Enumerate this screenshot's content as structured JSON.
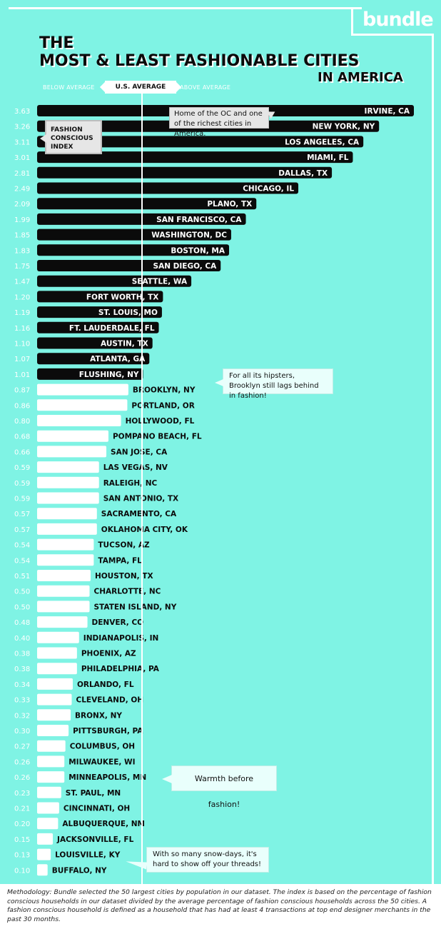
{
  "brand": "bundle",
  "title": {
    "line1": "THE",
    "line2": "MOST & LEAST FASHIONABLE CITIES",
    "line3": "IN AMERICA"
  },
  "scale": {
    "below": "BELOW AVERAGE",
    "center": "U.S. AVERAGE",
    "above": "ABOVE AVERAGE"
  },
  "callouts": {
    "index_label": "FASHION CONSCIOUS INDEX",
    "irvine": "Home of the OC and one of the richest cities in America.",
    "brooklyn": "For all its hipsters, Brooklyn still lags behind in fashion!",
    "minneapolis": "Warmth before fashion!",
    "buffalo": "With so many snow-days, it's hard to show off your threads!"
  },
  "methodology": "Methodology: Bundle selected the 50 largest cities by population in our dataset. The index is based on the percentage of fashion conscious households in our dataset divided by the average percentage of fashion conscious households across the 50 cities. A fashion conscious household is defined as a household that has had at least 4 transactions at top end designer merchants in the past 30 months.",
  "colors": {
    "background": "#7ff3e4",
    "above_bar": "#0b0b0b",
    "below_bar": "#ffffff",
    "value_text": "#ffffff"
  },
  "chart_data": {
    "type": "bar",
    "orientation": "horizontal",
    "reference_value": 1.0,
    "reference_label": "U.S. AVERAGE",
    "categories": [
      "IRVINE, CA",
      "NEW YORK, NY",
      "LOS ANGELES, CA",
      "MIAMI, FL",
      "DALLAS, TX",
      "CHICAGO, IL",
      "PLANO, TX",
      "SAN FRANCISCO, CA",
      "WASHINGTON, DC",
      "BOSTON, MA",
      "SAN DIEGO, CA",
      "SEATTLE, WA",
      "FORT WORTH, TX",
      "ST. LOUIS, MO",
      "FT. LAUDERDALE, FL",
      "AUSTIN, TX",
      "ATLANTA, GA",
      "FLUSHING, NY",
      "BROOKLYN, NY",
      "PORTLAND, OR",
      "HOLLYWOOD, FL",
      "POMPANO BEACH, FL",
      "SAN JOSE, CA",
      "LAS VEGAS, NV",
      "RALEIGH, NC",
      "SAN ANTONIO, TX",
      "SACRAMENTO, CA",
      "OKLAHOMA CITY, OK",
      "TUCSON, AZ",
      "TAMPA, FL",
      "HOUSTON, TX",
      "CHARLOTTE, NC",
      "STATEN ISLAND, NY",
      "DENVER, CO",
      "INDIANAPOLIS, IN",
      "PHOENIX, AZ",
      "PHILADELPHIA, PA",
      "ORLANDO, FL",
      "CLEVELAND, OH",
      "BRONX, NY",
      "PITTSBURGH, PA",
      "COLUMBUS, OH",
      "MILWAUKEE, WI",
      "MINNEAPOLIS, MN",
      "ST. PAUL, MN",
      "CINCINNATI, OH",
      "ALBUQUERQUE, NM",
      "JACKSONVILLE, FL",
      "LOUISVILLE, KY",
      "BUFFALO, NY"
    ],
    "values": [
      3.63,
      3.26,
      3.11,
      3.01,
      2.81,
      2.49,
      2.09,
      1.99,
      1.85,
      1.83,
      1.75,
      1.47,
      1.2,
      1.19,
      1.16,
      1.1,
      1.07,
      1.01,
      0.87,
      0.86,
      0.8,
      0.68,
      0.66,
      0.59,
      0.59,
      0.59,
      0.57,
      0.57,
      0.54,
      0.54,
      0.51,
      0.5,
      0.5,
      0.48,
      0.4,
      0.38,
      0.38,
      0.34,
      0.33,
      0.32,
      0.3,
      0.27,
      0.26,
      0.26,
      0.23,
      0.21,
      0.2,
      0.15,
      0.13,
      0.1
    ],
    "value_labels": [
      "3.63",
      "3.26",
      "3.11",
      "3.01",
      "2.81",
      "2.49",
      "2.09",
      "1.99",
      "1.85",
      "1.83",
      "1.75",
      "1.47",
      "1.20",
      "1.19",
      "1.16",
      "1.10",
      "1.07",
      "1.01",
      "0.87",
      "0.86",
      "0.80",
      "0.68",
      "0.66",
      "0.59",
      "0.59",
      "0.59",
      "0.57",
      "0.57",
      "0.54",
      "0.54",
      "0.51",
      "0.50",
      "0.50",
      "0.48",
      "0.40",
      "0.38",
      "0.38",
      "0.34",
      "0.33",
      "0.32",
      "0.30",
      "0.27",
      "0.26",
      "0.26",
      "0.23",
      "0.21",
      "0.20",
      "0.15",
      "0.13",
      "0.10"
    ],
    "title": "THE MOST & LEAST FASHIONABLE CITIES IN AMERICA",
    "ylabel": "FASHION CONSCIOUS INDEX"
  }
}
